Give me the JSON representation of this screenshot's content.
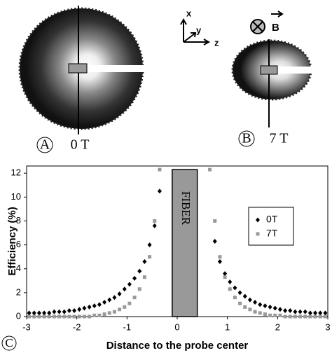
{
  "panels": {
    "a": {
      "letter": "A",
      "field": "0 T"
    },
    "b": {
      "letter": "B",
      "field": "7 T"
    },
    "c": {
      "letter": "C"
    },
    "axes_icon": {
      "x": "x",
      "y": "y",
      "z": "z",
      "field": "B"
    }
  },
  "chart_data": {
    "type": "scatter",
    "x": [
      -2.95,
      -2.85,
      -2.75,
      -2.65,
      -2.55,
      -2.45,
      -2.35,
      -2.25,
      -2.15,
      -2.05,
      -1.95,
      -1.85,
      -1.75,
      -1.65,
      -1.55,
      -1.45,
      -1.35,
      -1.25,
      -1.15,
      -1.05,
      -0.95,
      -0.85,
      -0.75,
      -0.65,
      -0.55,
      -0.45,
      -0.35,
      0.65,
      0.75,
      0.85,
      0.95,
      1.05,
      1.15,
      1.25,
      1.35,
      1.45,
      1.55,
      1.65,
      1.75,
      1.85,
      1.95,
      2.05,
      2.15,
      2.25,
      2.35,
      2.45,
      2.55,
      2.65,
      2.75,
      2.85,
      2.95
    ],
    "series": [
      {
        "name": "0T",
        "color": "#000000",
        "marker": "diamond",
        "values": [
          0.3,
          0.3,
          0.3,
          0.3,
          0.3,
          0.4,
          0.4,
          0.4,
          0.5,
          0.5,
          0.6,
          0.7,
          0.8,
          0.9,
          1.0,
          1.2,
          1.4,
          1.6,
          1.9,
          2.3,
          2.7,
          3.2,
          3.8,
          4.6,
          6.0,
          7.6,
          10.5,
          null,
          6.3,
          4.6,
          3.6,
          2.9,
          2.4,
          2.0,
          1.7,
          1.4,
          1.2,
          1.0,
          0.9,
          0.8,
          0.7,
          0.6,
          0.5,
          0.5,
          0.4,
          0.4,
          0.4,
          0.3,
          0.3,
          0.3,
          0.3
        ]
      },
      {
        "name": "7T",
        "color": "#999999",
        "marker": "square",
        "values": [
          0.0,
          0.0,
          0.0,
          0.0,
          0.0,
          0.0,
          0.0,
          0.0,
          0.0,
          0.0,
          0.0,
          0.0,
          0.0,
          0.1,
          0.1,
          0.2,
          0.3,
          0.4,
          0.6,
          0.8,
          1.1,
          1.6,
          2.3,
          3.3,
          5.0,
          8.0,
          12.3,
          12.3,
          8.0,
          5.0,
          3.3,
          2.3,
          1.6,
          1.1,
          0.8,
          0.6,
          0.4,
          0.3,
          0.2,
          0.1,
          0.1,
          0.1,
          0.0,
          0.0,
          0.0,
          0.0,
          0.0,
          0.0,
          0.0,
          0.0,
          0.0
        ]
      }
    ],
    "xlabel": "Distance to the probe center",
    "ylabel": "Efficiency (%)",
    "xlim": [
      -3,
      3
    ],
    "ylim": [
      0,
      12.6
    ],
    "xticks": [
      -3,
      -2,
      -1,
      0,
      1,
      2,
      3
    ],
    "yticks": [
      0,
      2,
      4,
      6,
      8,
      10,
      12
    ],
    "annotation": {
      "text": "FIBER",
      "x0": -0.1,
      "x1": 0.4,
      "y": 12.3,
      "color": "#999999"
    }
  }
}
